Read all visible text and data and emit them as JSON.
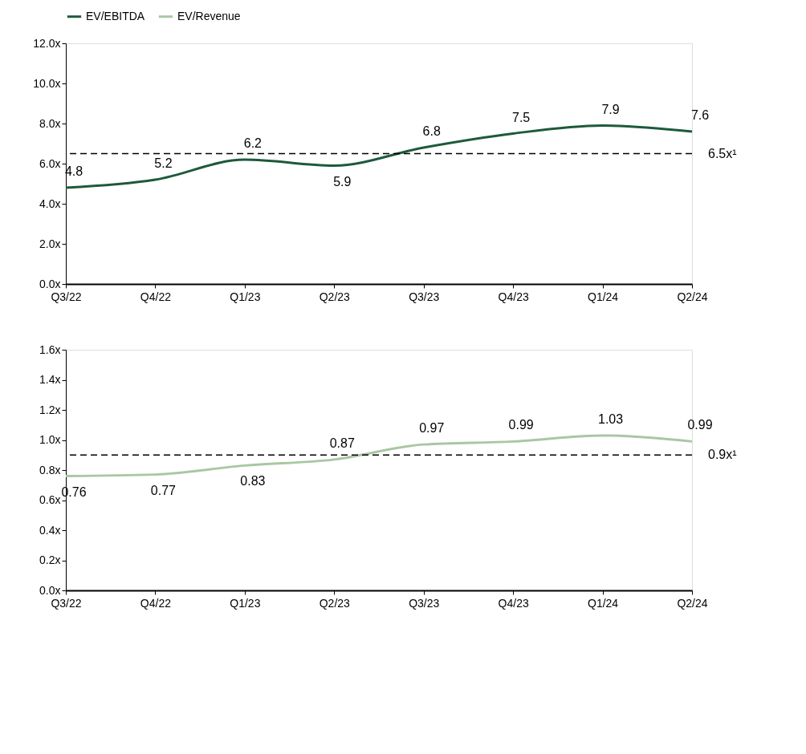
{
  "chart_data": [
    {
      "type": "line",
      "categories": [
        "Q3/22",
        "Q4/22",
        "Q1/23",
        "Q2/23",
        "Q3/23",
        "Q4/23",
        "Q1/24",
        "Q2/24"
      ],
      "series": [
        {
          "name": "EV/EBITDA",
          "color": "#1d5a3c",
          "values": [
            4.8,
            5.2,
            6.2,
            5.9,
            6.8,
            7.5,
            7.9,
            7.6
          ]
        }
      ],
      "ylim": [
        0,
        12
      ],
      "yticks": [
        {
          "value": 0,
          "label": "0.0x"
        },
        {
          "value": 2,
          "label": "2.0x"
        },
        {
          "value": 4,
          "label": "4.0x"
        },
        {
          "value": 6,
          "label": "6.0x"
        },
        {
          "value": 8,
          "label": "8.0x"
        },
        {
          "value": 10,
          "label": "10.0x"
        },
        {
          "value": 12,
          "label": "12.0x"
        }
      ],
      "ref_lines": [
        {
          "axis": "y",
          "value": 6.5,
          "label": "6.5x¹",
          "color": "#000000",
          "line_style": "dashed"
        }
      ],
      "data_labels": true,
      "legend": "top",
      "grid": false,
      "marker": "none",
      "line_style": "solid"
    },
    {
      "type": "line",
      "categories": [
        "Q3/22",
        "Q4/22",
        "Q1/23",
        "Q2/23",
        "Q3/23",
        "Q4/23",
        "Q1/24",
        "Q2/24"
      ],
      "series": [
        {
          "name": "EV/Revenue",
          "color": "#a8c8a2",
          "values": [
            0.76,
            0.77,
            0.83,
            0.87,
            0.97,
            0.99,
            1.03,
            0.99
          ]
        }
      ],
      "ylim": [
        0,
        1.6
      ],
      "yticks": [
        {
          "value": 0,
          "label": "0.0x"
        },
        {
          "value": 0.2,
          "label": "0.2x"
        },
        {
          "value": 0.4,
          "label": "0.4x"
        },
        {
          "value": 0.6,
          "label": "0.6x"
        },
        {
          "value": 0.8,
          "label": "0.8x"
        },
        {
          "value": 1.0,
          "label": "1.0x"
        },
        {
          "value": 1.2,
          "label": "1.2x"
        },
        {
          "value": 1.4,
          "label": "1.4x"
        },
        {
          "value": 1.6,
          "label": "1.6x"
        }
      ],
      "ref_lines": [
        {
          "axis": "y",
          "value": 0.9,
          "label": "0.9x¹",
          "color": "#000000",
          "line_style": "dashed"
        }
      ],
      "data_labels": true,
      "legend": "top",
      "grid": false,
      "marker": "none",
      "line_style": "solid"
    }
  ]
}
